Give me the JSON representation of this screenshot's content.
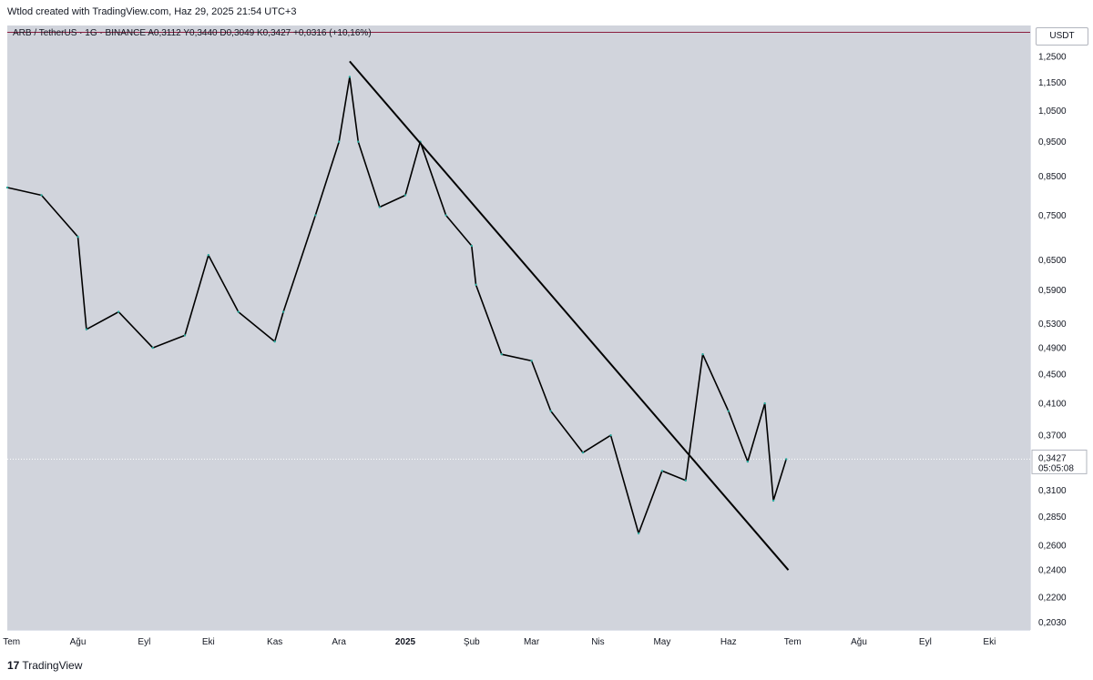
{
  "header": {
    "created_text": "Wtlod created with TradingView.com, Haz 29, 2025 21:54 UTC+3"
  },
  "legend": {
    "symbol": "ARB / TetherUS",
    "interval": "1G",
    "exchange": "BINANCE",
    "open": "A0,3112",
    "high": "Y0,3440",
    "low": "D0,3049",
    "close": "K0,3427",
    "change": "+0,0316 (+10,16%)"
  },
  "price_axis": {
    "currency": "USDT",
    "current_price": "0,3427",
    "countdown": "05:05:08"
  },
  "footer": {
    "brand": "TradingView",
    "logo": "17"
  },
  "colors": {
    "up": "#26a69a",
    "down": "#000000",
    "background": "#d1d4dc",
    "accent_line": "#8b1e3f",
    "trendline": "#000000"
  },
  "chart_data": {
    "type": "line",
    "scale": "log",
    "y_ticks": [
      "1,2500",
      "1,1500",
      "1,0500",
      "0,9500",
      "0,8500",
      "0,7500",
      "0,6500",
      "0,5900",
      "0,5300",
      "0,4900",
      "0,4500",
      "0,4100",
      "0,3700",
      "0,3100",
      "0,2850",
      "0,2600",
      "0,2400",
      "0,2200",
      "0,2030"
    ],
    "x_ticks": [
      "Tem",
      "Ağu",
      "Eyl",
      "Eki",
      "Kas",
      "Ara",
      "2025",
      "Şub",
      "Mar",
      "Nis",
      "May",
      "Haz",
      "Tem",
      "Ağu",
      "Eyl",
      "Eki"
    ],
    "bold_x_ticks": [
      "2025"
    ],
    "series": [
      {
        "x": [
          "2024-06-29",
          "2024-07-15",
          "2024-08-01",
          "2024-08-05",
          "2024-08-20",
          "2024-09-05",
          "2024-09-20",
          "2024-10-01",
          "2024-10-15",
          "2024-11-01",
          "2024-11-05",
          "2024-11-20",
          "2024-12-01",
          "2024-12-06",
          "2024-12-10",
          "2024-12-20",
          "2025-01-01",
          "2025-01-08",
          "2025-01-20",
          "2025-02-01",
          "2025-02-03",
          "2025-02-15",
          "2025-03-01",
          "2025-03-10",
          "2025-03-25",
          "2025-04-07",
          "2025-04-20",
          "2025-05-01",
          "2025-05-12",
          "2025-05-20",
          "2025-06-01",
          "2025-06-10",
          "2025-06-18",
          "2025-06-22",
          "2025-06-28"
        ],
        "y": [
          0.82,
          0.8,
          0.7,
          0.52,
          0.55,
          0.49,
          0.51,
          0.66,
          0.55,
          0.5,
          0.55,
          0.75,
          0.95,
          1.17,
          0.95,
          0.77,
          0.8,
          0.95,
          0.75,
          0.68,
          0.6,
          0.48,
          0.47,
          0.4,
          0.35,
          0.37,
          0.27,
          0.33,
          0.32,
          0.48,
          0.4,
          0.34,
          0.41,
          0.3,
          0.3427
        ]
      }
    ],
    "trendline": {
      "from": {
        "x": "2024-12-06",
        "y": 1.23
      },
      "to": {
        "x": "2025-06-29",
        "y": 0.24
      }
    },
    "current_price": 0.3427
  }
}
